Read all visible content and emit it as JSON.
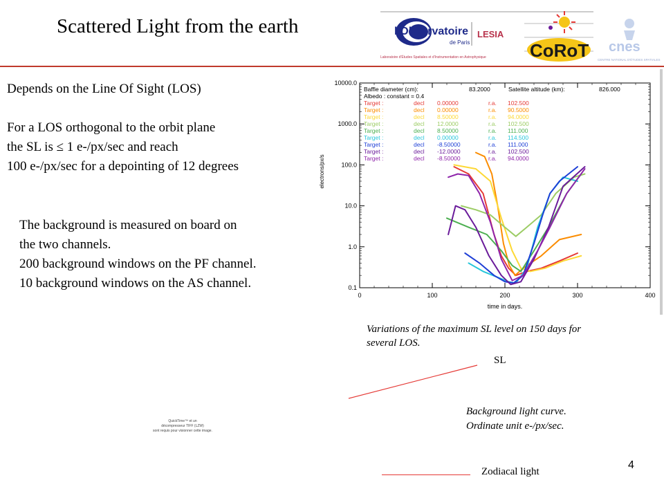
{
  "slide": {
    "title": "Scattered Light from the earth",
    "page_number": "4"
  },
  "logos": {
    "obs_name": "l'Observatoire",
    "obs_sub": "de Paris",
    "lesia": "LESIA",
    "lab_line": "Laboratoire d'Études Spatiales et d'Instrumentation en Astrophysique",
    "corot": "CoRoT",
    "cnes": "cnes",
    "cnes_sub": "CENTRE NATIONAL D'ÉTUDES SPATIALES"
  },
  "text": {
    "los_line": "Depends on the Line Of Sight (LOS)",
    "orth_1": "For a LOS orthogonal to the orbit plane",
    "orth_2": "the SL is ≤ 1 e-/px/sec and reach",
    "orth_3": "100 e-/px/sec for a depointing of 12 degrees",
    "bg_1": "The background is measured on board on",
    "bg_2": "the two channels.",
    "bg_3": "200 background windows on the PF channel.",
    "bg_4": "10 background windows on the AS channel."
  },
  "captions": {
    "variations_1": "Variations of the maximum SL level on 150 days for",
    "variations_2": "several LOS.",
    "sl_label": "SL",
    "bg_curve_1": "Background light curve.",
    "bg_curve_2": "Ordinate unit e-/px/sec.",
    "zodiacal": "Zodiacal light"
  },
  "quicktime": {
    "line1": "QuickTime™ et un",
    "line2": "décompresseur TIFF (LZW)",
    "line3": "sont requis pour visionner cette image."
  },
  "chart_data": {
    "type": "line",
    "xlabel": "time in days.",
    "ylabel": "electrons/px/s",
    "y_scale": "log",
    "xlim": [
      0,
      400
    ],
    "ylim": [
      0.1,
      10000
    ],
    "x_ticks": [
      "0",
      "100",
      "200",
      "300",
      "400"
    ],
    "y_ticks": [
      "0.1",
      "1.0",
      "10.0",
      "100.0",
      "1000.0",
      "10000.0"
    ],
    "header": {
      "baffle_label": "Baffle diameter (cm):",
      "baffle_value": "83.2000",
      "altitude_label": "Satellite altitude (km):",
      "altitude_value": "826.000",
      "albedo": "Albedo : constant = 0.4"
    },
    "legend": [
      {
        "target": "Target :",
        "decl_label": "decl",
        "decl": "0.00000",
        "ra_label": "r.a.",
        "ra": "102.500",
        "color": "#e53935"
      },
      {
        "target": "Target :",
        "decl_label": "decl",
        "decl": "0.00000",
        "ra_label": "r.a.",
        "ra": "90.5000",
        "color": "#fb8c00"
      },
      {
        "target": "Target :",
        "decl_label": "decl",
        "decl": "8.50000",
        "ra_label": "r.a.",
        "ra": "94.0000",
        "color": "#fdd835"
      },
      {
        "target": "Target :",
        "decl_label": "decl",
        "decl": "12.0000",
        "ra_label": "r.a.",
        "ra": "102.500",
        "color": "#9ccc65"
      },
      {
        "target": "Target :",
        "decl_label": "decl",
        "decl": "8.50000",
        "ra_label": "r.a.",
        "ra": "111.000",
        "color": "#4caf50"
      },
      {
        "target": "Target :",
        "decl_label": "decl",
        "decl": "0.00000",
        "ra_label": "r.a.",
        "ra": "114.500",
        "color": "#26c6da"
      },
      {
        "target": "Target :",
        "decl_label": "decl",
        "decl": "-8.50000",
        "ra_label": "r.a.",
        "ra": "111.000",
        "color": "#1e3fd6"
      },
      {
        "target": "Target :",
        "decl_label": "decl",
        "decl": "-12.0000",
        "ra_label": "r.a.",
        "ra": "102.500",
        "color": "#6a1b9a"
      },
      {
        "target": "Target :",
        "decl_label": "decl",
        "decl": "-8.50000",
        "ra_label": "r.a.",
        "ra": "94.0000",
        "color": "#8e24aa"
      }
    ],
    "series": [
      {
        "color": "#e53935",
        "points": [
          [
            130,
            90
          ],
          [
            150,
            60
          ],
          [
            170,
            20
          ],
          [
            185,
            2
          ],
          [
            195,
            0.6
          ],
          [
            205,
            0.3
          ],
          [
            215,
            0.2
          ],
          [
            230,
            0.25
          ],
          [
            250,
            0.3
          ],
          [
            275,
            0.45
          ],
          [
            300,
            0.7
          ]
        ]
      },
      {
        "color": "#fb8c00",
        "points": [
          [
            160,
            200
          ],
          [
            172,
            160
          ],
          [
            182,
            60
          ],
          [
            190,
            10
          ],
          [
            198,
            1.2
          ],
          [
            206,
            0.35
          ],
          [
            214,
            0.2
          ],
          [
            225,
            0.3
          ],
          [
            250,
            0.6
          ],
          [
            275,
            1.5
          ],
          [
            305,
            2
          ]
        ]
      },
      {
        "color": "#fdd835",
        "points": [
          [
            130,
            100
          ],
          [
            160,
            80
          ],
          [
            180,
            40
          ],
          [
            195,
            5
          ],
          [
            210,
            0.8
          ],
          [
            222,
            0.3
          ],
          [
            235,
            0.25
          ],
          [
            255,
            0.3
          ],
          [
            280,
            0.45
          ],
          [
            305,
            0.6
          ]
        ]
      },
      {
        "color": "#9ccc65",
        "points": [
          [
            140,
            10
          ],
          [
            160,
            8
          ],
          [
            180,
            6
          ],
          [
            200,
            3
          ],
          [
            215,
            1.8
          ],
          [
            230,
            3
          ],
          [
            250,
            6
          ],
          [
            270,
            20
          ],
          [
            295,
            50
          ],
          [
            310,
            60
          ]
        ]
      },
      {
        "color": "#4caf50",
        "points": [
          [
            120,
            5
          ],
          [
            150,
            3
          ],
          [
            175,
            2
          ],
          [
            195,
            0.8
          ],
          [
            210,
            0.35
          ],
          [
            222,
            0.25
          ],
          [
            240,
            0.8
          ],
          [
            260,
            3
          ],
          [
            285,
            20
          ],
          [
            305,
            60
          ]
        ]
      },
      {
        "color": "#26c6da",
        "points": [
          [
            150,
            0.4
          ],
          [
            170,
            0.25
          ],
          [
            190,
            0.18
          ],
          [
            205,
            0.14
          ],
          [
            215,
            0.13
          ],
          [
            230,
            0.3
          ],
          [
            245,
            3
          ],
          [
            262,
            20
          ],
          [
            280,
            50
          ],
          [
            300,
            40
          ]
        ]
      },
      {
        "color": "#1e3fd6",
        "points": [
          [
            145,
            0.7
          ],
          [
            165,
            0.4
          ],
          [
            185,
            0.2
          ],
          [
            200,
            0.14
          ],
          [
            212,
            0.13
          ],
          [
            225,
            0.2
          ],
          [
            240,
            1.2
          ],
          [
            252,
            6
          ],
          [
            262,
            20
          ],
          [
            275,
            40
          ],
          [
            300,
            90
          ]
        ]
      },
      {
        "color": "#6a1b9a",
        "points": [
          [
            122,
            2
          ],
          [
            132,
            10
          ],
          [
            145,
            8
          ],
          [
            160,
            3
          ],
          [
            178,
            0.6
          ],
          [
            195,
            0.2
          ],
          [
            208,
            0.12
          ],
          [
            222,
            0.14
          ],
          [
            240,
            0.5
          ],
          [
            260,
            3
          ],
          [
            280,
            30
          ],
          [
            310,
            90
          ]
        ]
      },
      {
        "color": "#8e24aa",
        "points": [
          [
            122,
            50
          ],
          [
            135,
            60
          ],
          [
            150,
            55
          ],
          [
            165,
            20
          ],
          [
            180,
            4
          ],
          [
            195,
            0.5
          ],
          [
            210,
            0.15
          ],
          [
            225,
            0.2
          ],
          [
            245,
            0.8
          ],
          [
            262,
            3
          ],
          [
            285,
            20
          ],
          [
            310,
            80
          ]
        ]
      }
    ]
  }
}
